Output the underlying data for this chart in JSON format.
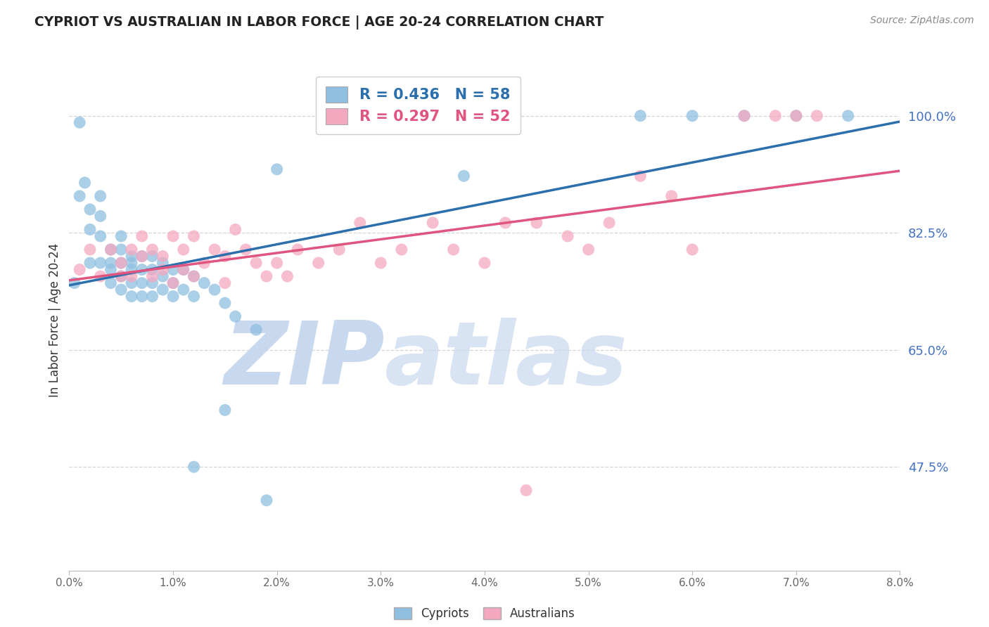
{
  "title": "CYPRIOT VS AUSTRALIAN IN LABOR FORCE | AGE 20-24 CORRELATION CHART",
  "source": "Source: ZipAtlas.com",
  "ylabel": "In Labor Force | Age 20-24",
  "ytick_vals": [
    0.475,
    0.65,
    0.825,
    1.0
  ],
  "ytick_labels": [
    "47.5%",
    "65.0%",
    "82.5%",
    "100.0%"
  ],
  "xmin": 0.0,
  "xmax": 0.08,
  "ymin": 0.32,
  "ymax": 1.07,
  "blue_color": "#8fbfe0",
  "pink_color": "#f4a8bf",
  "blue_line_color": "#2c6fad",
  "pink_line_color": "#e05580",
  "blue_R": 0.436,
  "blue_N": 58,
  "pink_R": 0.297,
  "pink_N": 52,
  "watermark_color": "#cddaee",
  "grid_color": "#d5d5d5",
  "ytick_color": "#4472c4",
  "title_color": "#222222",
  "source_color": "#888888",
  "cypriot_x": [
    0.0005,
    0.001,
    0.001,
    0.0015,
    0.002,
    0.002,
    0.002,
    0.003,
    0.003,
    0.003,
    0.003,
    0.004,
    0.004,
    0.004,
    0.004,
    0.005,
    0.005,
    0.005,
    0.005,
    0.005,
    0.006,
    0.006,
    0.006,
    0.006,
    0.006,
    0.007,
    0.007,
    0.007,
    0.007,
    0.008,
    0.008,
    0.008,
    0.008,
    0.009,
    0.009,
    0.009,
    0.01,
    0.01,
    0.01,
    0.011,
    0.011,
    0.012,
    0.012,
    0.013,
    0.014,
    0.015,
    0.016,
    0.018,
    0.02,
    0.038,
    0.055,
    0.06,
    0.065,
    0.07,
    0.075,
    0.012,
    0.015,
    0.019
  ],
  "cypriot_y": [
    0.75,
    0.99,
    0.88,
    0.9,
    0.86,
    0.83,
    0.78,
    0.88,
    0.85,
    0.82,
    0.78,
    0.8,
    0.78,
    0.77,
    0.75,
    0.82,
    0.8,
    0.78,
    0.76,
    0.74,
    0.79,
    0.78,
    0.77,
    0.75,
    0.73,
    0.79,
    0.77,
    0.75,
    0.73,
    0.79,
    0.77,
    0.75,
    0.73,
    0.78,
    0.76,
    0.74,
    0.77,
    0.75,
    0.73,
    0.77,
    0.74,
    0.76,
    0.73,
    0.75,
    0.74,
    0.72,
    0.7,
    0.68,
    0.92,
    0.91,
    1.0,
    1.0,
    1.0,
    1.0,
    1.0,
    0.475,
    0.56,
    0.425
  ],
  "australian_x": [
    0.001,
    0.002,
    0.003,
    0.004,
    0.005,
    0.005,
    0.006,
    0.006,
    0.007,
    0.007,
    0.008,
    0.008,
    0.009,
    0.009,
    0.01,
    0.01,
    0.011,
    0.011,
    0.012,
    0.012,
    0.013,
    0.014,
    0.015,
    0.015,
    0.016,
    0.017,
    0.018,
    0.019,
    0.02,
    0.021,
    0.022,
    0.024,
    0.026,
    0.028,
    0.03,
    0.032,
    0.035,
    0.037,
    0.04,
    0.042,
    0.045,
    0.048,
    0.05,
    0.052,
    0.055,
    0.058,
    0.06,
    0.065,
    0.068,
    0.07,
    0.072,
    0.044
  ],
  "australian_y": [
    0.77,
    0.8,
    0.76,
    0.8,
    0.78,
    0.76,
    0.8,
    0.76,
    0.82,
    0.79,
    0.8,
    0.76,
    0.79,
    0.77,
    0.82,
    0.75,
    0.8,
    0.77,
    0.82,
    0.76,
    0.78,
    0.8,
    0.79,
    0.75,
    0.83,
    0.8,
    0.78,
    0.76,
    0.78,
    0.76,
    0.8,
    0.78,
    0.8,
    0.84,
    0.78,
    0.8,
    0.84,
    0.8,
    0.78,
    0.84,
    0.84,
    0.82,
    0.8,
    0.84,
    0.91,
    0.88,
    0.8,
    1.0,
    1.0,
    1.0,
    1.0,
    0.44
  ]
}
